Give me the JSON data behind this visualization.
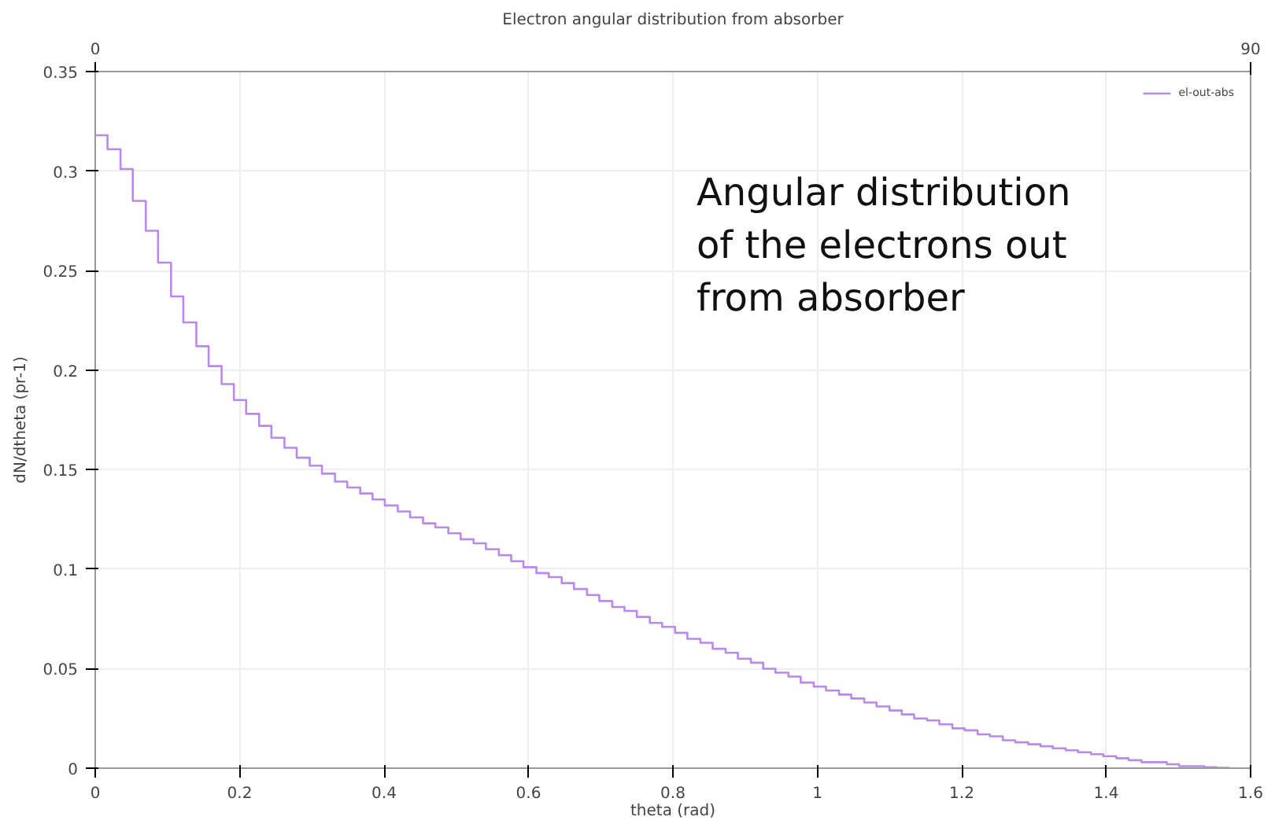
{
  "chart_data": {
    "type": "step",
    "title": "Electron angular distribution from absorber",
    "xlabel": "theta (rad)",
    "ylabel": "dN/dtheta (pr-1)",
    "xlim": [
      0,
      1.6
    ],
    "xticks": [
      0,
      0.2,
      0.4,
      0.6,
      0.8,
      1,
      1.2,
      1.4,
      1.6
    ],
    "ylim": [
      0,
      0.35
    ],
    "yticks": [
      0,
      0.05,
      0.1,
      0.15,
      0.2,
      0.25,
      0.3,
      0.35
    ],
    "x2lim": [
      0,
      90
    ],
    "x2ticks": [
      0,
      90
    ],
    "grid": true,
    "legend": "top right",
    "annotations": [
      "Angular distribution of the electrons out from absorber"
    ],
    "series": [
      {
        "name": "el-out-abs",
        "color": "#b98be8",
        "x": [
          0,
          0.017,
          0.035,
          0.052,
          0.07,
          0.087,
          0.105,
          0.122,
          0.14,
          0.157,
          0.175,
          0.192,
          0.209,
          0.227,
          0.244,
          0.262,
          0.279,
          0.297,
          0.314,
          0.332,
          0.349,
          0.367,
          0.384,
          0.401,
          0.419,
          0.436,
          0.454,
          0.471,
          0.489,
          0.506,
          0.524,
          0.541,
          0.559,
          0.576,
          0.593,
          0.611,
          0.628,
          0.646,
          0.663,
          0.681,
          0.698,
          0.716,
          0.733,
          0.75,
          0.768,
          0.785,
          0.803,
          0.82,
          0.838,
          0.855,
          0.873,
          0.89,
          0.908,
          0.925,
          0.942,
          0.96,
          0.977,
          0.995,
          1.012,
          1.03,
          1.047,
          1.065,
          1.082,
          1.1,
          1.117,
          1.134,
          1.152,
          1.169,
          1.187,
          1.204,
          1.222,
          1.239,
          1.257,
          1.274,
          1.292,
          1.309,
          1.326,
          1.344,
          1.361,
          1.379,
          1.396,
          1.414,
          1.431,
          1.449,
          1.466,
          1.484,
          1.501,
          1.518,
          1.536,
          1.553,
          1.571
        ],
        "values": [
          0.318,
          0.311,
          0.301,
          0.285,
          0.27,
          0.254,
          0.237,
          0.224,
          0.212,
          0.202,
          0.193,
          0.185,
          0.178,
          0.172,
          0.166,
          0.161,
          0.156,
          0.152,
          0.148,
          0.144,
          0.141,
          0.138,
          0.135,
          0.132,
          0.129,
          0.126,
          0.123,
          0.121,
          0.118,
          0.115,
          0.113,
          0.11,
          0.107,
          0.104,
          0.101,
          0.098,
          0.096,
          0.093,
          0.09,
          0.087,
          0.084,
          0.081,
          0.079,
          0.076,
          0.073,
          0.071,
          0.068,
          0.065,
          0.063,
          0.06,
          0.058,
          0.055,
          0.053,
          0.05,
          0.048,
          0.046,
          0.043,
          0.041,
          0.039,
          0.037,
          0.035,
          0.033,
          0.031,
          0.029,
          0.027,
          0.025,
          0.024,
          0.022,
          0.02,
          0.019,
          0.017,
          0.016,
          0.014,
          0.013,
          0.012,
          0.011,
          0.01,
          0.009,
          0.008,
          0.007,
          0.006,
          0.005,
          0.004,
          0.003,
          0.003,
          0.002,
          0.001,
          0.001,
          0.0005,
          0.0002,
          0.0002
        ]
      }
    ]
  }
}
